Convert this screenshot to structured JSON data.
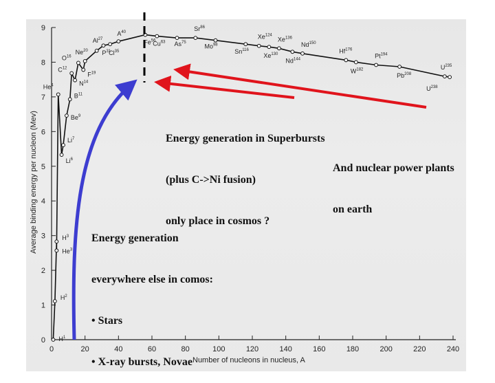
{
  "chart_data": {
    "type": "line",
    "xlabel": "Number of nucleons in nucleus, A",
    "ylabel": "Average binding energy per nucleon (Mev)",
    "xlim": [
      0,
      240
    ],
    "ylim": [
      0,
      9
    ],
    "xticks": [
      0,
      20,
      40,
      60,
      80,
      100,
      120,
      140,
      160,
      180,
      200,
      220,
      240
    ],
    "yticks": [
      0,
      1,
      2,
      3,
      4,
      5,
      6,
      7,
      8,
      9
    ],
    "grid": false,
    "series": [
      {
        "points": [
          {
            "x": 1,
            "y": 0.0,
            "label": "H",
            "mass": "1"
          },
          {
            "x": 2,
            "y": 1.11,
            "label": "H",
            "mass": "2"
          },
          {
            "x": 3,
            "y": 2.83,
            "label": "H",
            "mass": "3"
          },
          {
            "x": 3,
            "y": 2.57,
            "label": "He",
            "mass": "3"
          },
          {
            "x": 4,
            "y": 7.07,
            "label": "He",
            "mass": "4"
          },
          {
            "x": 6,
            "y": 5.33,
            "label": "Li",
            "mass": "6"
          },
          {
            "x": 7,
            "y": 5.61,
            "label": "Li",
            "mass": "7"
          },
          {
            "x": 9,
            "y": 6.46,
            "label": "Be",
            "mass": "9"
          },
          {
            "x": 11,
            "y": 6.93,
            "label": "B",
            "mass": "11"
          },
          {
            "x": 12,
            "y": 7.68,
            "label": "C",
            "mass": "12"
          },
          {
            "x": 14,
            "y": 7.48,
            "label": "N",
            "mass": "14"
          },
          {
            "x": 16,
            "y": 7.98,
            "label": "O",
            "mass": "16"
          },
          {
            "x": 19,
            "y": 7.78,
            "label": "F",
            "mass": "19"
          },
          {
            "x": 20,
            "y": 8.03,
            "label": "Ne",
            "mass": "20"
          },
          {
            "x": 27,
            "y": 8.33,
            "label": "Al",
            "mass": "27"
          },
          {
            "x": 31,
            "y": 8.48,
            "label": "P",
            "mass": "31"
          },
          {
            "x": 35,
            "y": 8.52,
            "label": "Cl",
            "mass": "35"
          },
          {
            "x": 40,
            "y": 8.6,
            "label": "A",
            "mass": "40"
          },
          {
            "x": 56,
            "y": 8.79,
            "label": "Fe",
            "mass": "56"
          },
          {
            "x": 63,
            "y": 8.75,
            "label": "Cu",
            "mass": "63"
          },
          {
            "x": 75,
            "y": 8.7,
            "label": "As",
            "mass": "75"
          },
          {
            "x": 86,
            "y": 8.7,
            "label": "Sr",
            "mass": "86"
          },
          {
            "x": 98,
            "y": 8.63,
            "label": "Mo",
            "mass": "98"
          },
          {
            "x": 116,
            "y": 8.52,
            "label": "Sn",
            "mass": "116"
          },
          {
            "x": 124,
            "y": 8.47,
            "label": "Xe",
            "mass": "124"
          },
          {
            "x": 130,
            "y": 8.44,
            "label": "Xe",
            "mass": "130"
          },
          {
            "x": 136,
            "y": 8.4,
            "label": "Xe",
            "mass": "136"
          },
          {
            "x": 144,
            "y": 8.3,
            "label": "Nd",
            "mass": "144"
          },
          {
            "x": 150,
            "y": 8.25,
            "label": "Nd",
            "mass": "150"
          },
          {
            "x": 176,
            "y": 8.06,
            "label": "Hf",
            "mass": "176"
          },
          {
            "x": 182,
            "y": 8.0,
            "label": "W",
            "mass": "182"
          },
          {
            "x": 194,
            "y": 7.92,
            "label": "Pt",
            "mass": "194"
          },
          {
            "x": 208,
            "y": 7.87,
            "label": "Pb",
            "mass": "208"
          },
          {
            "x": 235,
            "y": 7.59,
            "label": "U",
            "mass": "235"
          },
          {
            "x": 238,
            "y": 7.57,
            "label": "U",
            "mass": "238"
          }
        ]
      }
    ],
    "annotations": {
      "superbursts": [
        "Energy generation in Superbursts",
        "(plus C->Ni fusion)",
        "only place in cosmos ?"
      ],
      "power_plants": [
        "And nuclear power plants",
        "on earth"
      ],
      "everywhere": [
        "Energy generation",
        "everywhere else in comos:",
        "• Stars",
        "• X-ray bursts, Novae"
      ]
    },
    "colors": {
      "curve": "#111111",
      "red_arrow": "#e0141c",
      "blue_arrow": "#3d3dd0",
      "marker": "#111111"
    }
  }
}
